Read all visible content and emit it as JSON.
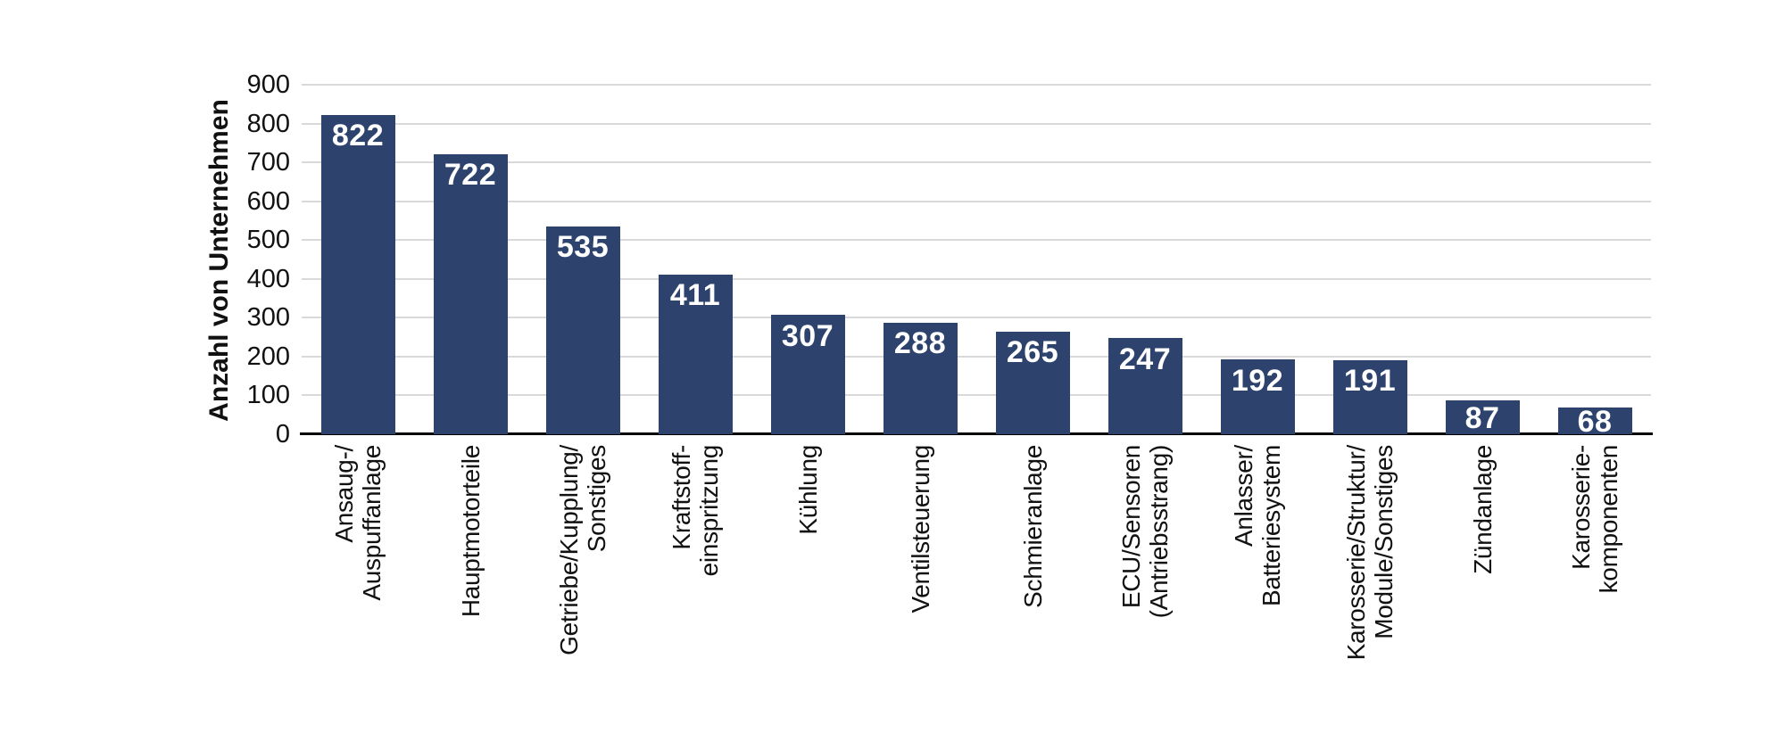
{
  "chart_data": {
    "type": "bar",
    "title": "",
    "xlabel": "",
    "ylabel": "Anzahl von Unternehmen",
    "categories": [
      "Ansaug-/\nAuspuffanlage",
      "Hauptmotorteile",
      "Getriebe/Kupplung/\nSonstiges",
      "Kraftstoff-\neinspritzung",
      "Kühlung",
      "Ventilsteuerung",
      "Schmieranlage",
      "ECU/Sensoren\n(Antriebsstrang)",
      "Anlasser/\nBatteriesystem",
      "Karosserie/Struktur/\nModule/Sonstiges",
      "Zündanlage",
      "Karosserie-\nkomponenten"
    ],
    "values": [
      822,
      722,
      535,
      411,
      307,
      288,
      265,
      247,
      192,
      191,
      87,
      68
    ],
    "value_labels": [
      "822",
      "722",
      "535",
      "411",
      "307",
      "288",
      "265",
      "247",
      "192",
      "191",
      "87",
      "68"
    ],
    "ylim": [
      0,
      900
    ],
    "yticks": [
      0,
      100,
      200,
      300,
      400,
      500,
      600,
      700,
      800,
      900
    ],
    "grid": "horizontal",
    "legend": "none",
    "colors": {
      "bar": "#2d436e",
      "value_label": "#ffffff",
      "gridline": "#d9d9d9",
      "axis": "#000000",
      "tick_text": "#111111"
    }
  }
}
